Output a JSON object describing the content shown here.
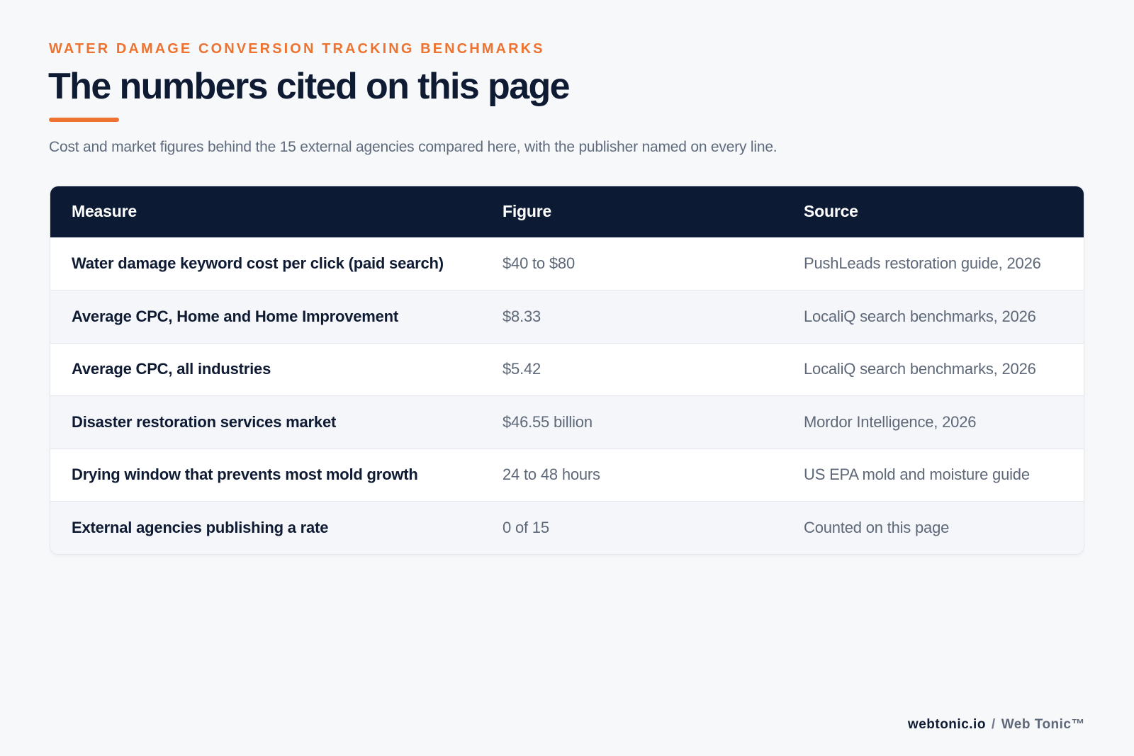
{
  "header": {
    "eyebrow": "WATER DAMAGE CONVERSION TRACKING BENCHMARKS",
    "title": "The numbers cited on this page",
    "subtitle": "Cost and market figures behind the 15 external agencies compared here, with the publisher named on every line."
  },
  "table": {
    "columns": [
      "Measure",
      "Figure",
      "Source"
    ],
    "rows": [
      {
        "measure": "Water damage keyword cost per click (paid search)",
        "figure": "$40 to $80",
        "source": "PushLeads restoration guide, 2026"
      },
      {
        "measure": "Average CPC, Home and Home Improvement",
        "figure": "$8.33",
        "source": "LocaliQ search benchmarks, 2026"
      },
      {
        "measure": "Average CPC, all industries",
        "figure": "$5.42",
        "source": "LocaliQ search benchmarks, 2026"
      },
      {
        "measure": "Disaster restoration services market",
        "figure": "$46.55 billion",
        "source": "Mordor Intelligence, 2026"
      },
      {
        "measure": "Drying window that prevents most mold growth",
        "figure": "24 to 48 hours",
        "source": "US EPA mold and moisture guide"
      },
      {
        "measure": "External agencies publishing a rate",
        "figure": "0 of 15",
        "source": "Counted on this page"
      }
    ]
  },
  "footer": {
    "domain": "webtonic.io",
    "separator": "/",
    "brand": "Web Tonic™"
  },
  "colors": {
    "accent": "#ee7330",
    "header_bg": "#0d1a33",
    "page_bg": "#f6f8fa"
  }
}
